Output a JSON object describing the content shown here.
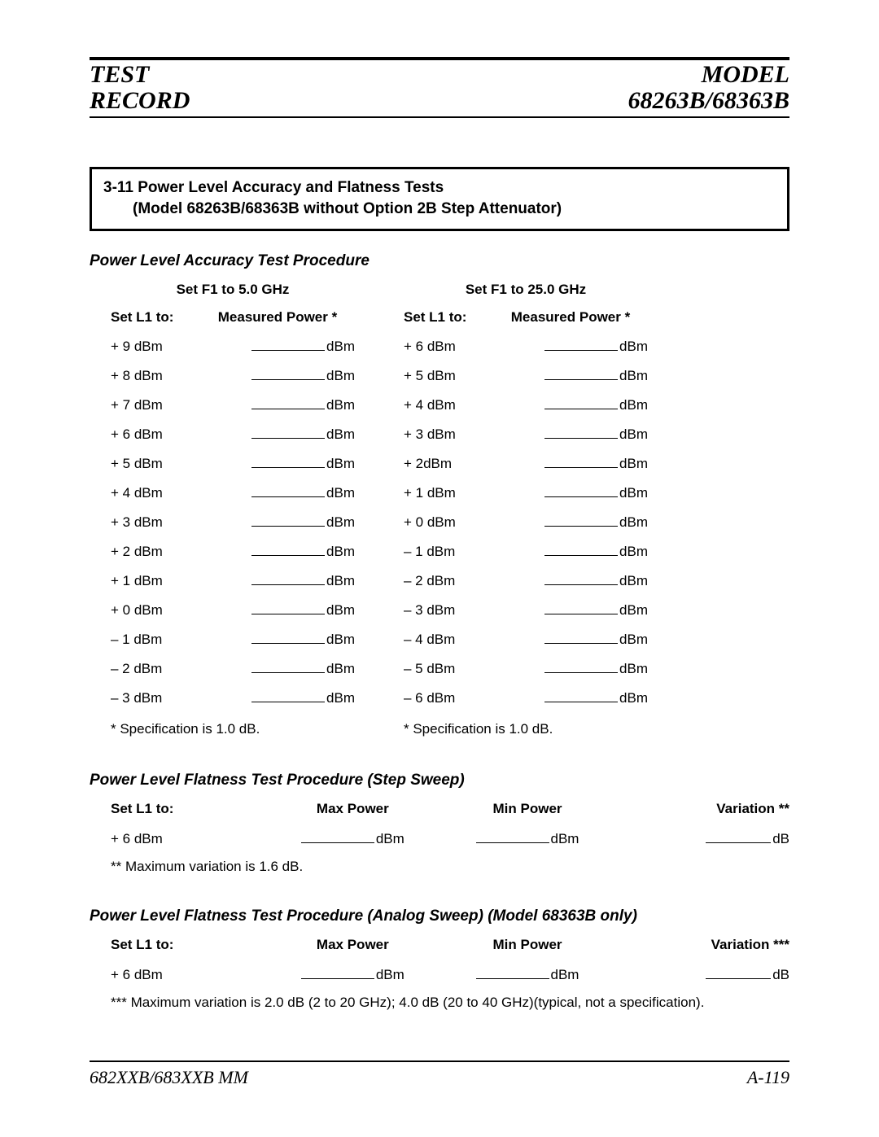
{
  "header": {
    "left_line1": "TEST",
    "left_line2": "RECORD",
    "right_line1": "MODEL",
    "right_line2": "68263B/68363B"
  },
  "section_box": {
    "number_and_title": "3-11 Power Level Accuracy and Flatness Tests",
    "subtitle": "(Model 68263B/68363B without Option 2B Step Attenuator)"
  },
  "accuracy": {
    "title": "Power Level Accuracy Test Procedure",
    "col_heads": {
      "set": "Set L1 to:",
      "meas": "Measured Power *"
    },
    "unit": "dBm",
    "left": {
      "freq_head": "Set F1 to 5.0 GHz",
      "rows": [
        "+ 9 dBm",
        "+ 8 dBm",
        "+ 7 dBm",
        "+ 6 dBm",
        "+ 5 dBm",
        "+ 4 dBm",
        "+ 3 dBm",
        "+ 2 dBm",
        "+ 1 dBm",
        "+ 0 dBm",
        "– 1 dBm",
        "– 2 dBm",
        "– 3 dBm"
      ],
      "spec": "* Specification is  1.0 dB."
    },
    "right": {
      "freq_head": "Set F1 to 25.0 GHz",
      "rows": [
        "+ 6 dBm",
        "+ 5 dBm",
        "+ 4 dBm",
        "+ 3 dBm",
        "+ 2dBm",
        "+ 1 dBm",
        "+ 0 dBm",
        "– 1 dBm",
        "– 2 dBm",
        "– 3 dBm",
        "– 4 dBm",
        "– 5 dBm",
        "– 6 dBm"
      ],
      "spec": "* Specification is  1.0 dB."
    }
  },
  "flat_step": {
    "title": "Power Level Flatness Test Procedure (Step Sweep)",
    "head": {
      "set": "Set L1 to:",
      "max": "Max Power",
      "min": "Min Power",
      "var": "Variation **"
    },
    "row": {
      "set": "+ 6 dBm",
      "unit_power": "dBm",
      "unit_var": "dB"
    },
    "footnote": "** Maximum variation is 1.6 dB."
  },
  "flat_analog": {
    "title": "Power Level Flatness Test Procedure (Analog Sweep) (Model 68363B only)",
    "head": {
      "set": "Set L1 to:",
      "max": "Max Power",
      "min": "Min Power",
      "var": "Variation ***"
    },
    "row": {
      "set": "+ 6 dBm",
      "unit_power": "dBm",
      "unit_var": "dB"
    },
    "footnote": "*** Maximum variation is 2.0 dB (2 to 20 GHz); 4.0 dB (20 to 40 GHz)(typical, not a specification)."
  },
  "footer": {
    "left": "682XXB/683XXB MM",
    "right": "A-119"
  }
}
